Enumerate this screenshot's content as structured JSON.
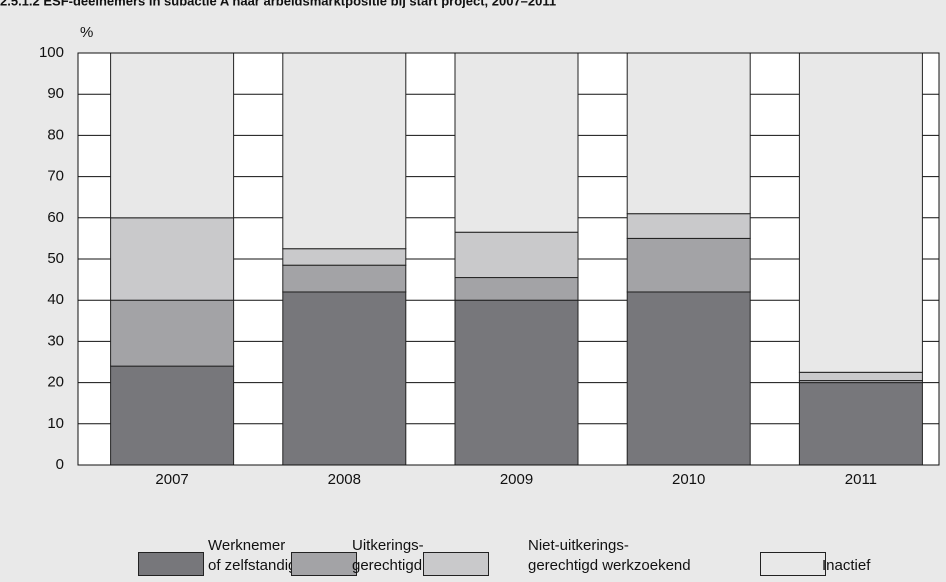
{
  "chart_data": {
    "type": "stacked_bar",
    "title": "2.5.1.2 ESF-deelnemers in subactie A naar arbeidsmarktpositie bij start project, 2007–2011",
    "y_label": "%",
    "categories": [
      "2007",
      "2008",
      "2009",
      "2010",
      "2011"
    ],
    "series": [
      {
        "name": "Werknemer\nof zelfstandige",
        "color": "#77777b",
        "values": [
          24,
          42,
          40,
          42,
          20
        ]
      },
      {
        "name": "Uitkerings-\ngerechtigd",
        "color": "#a3a3a6",
        "values": [
          16,
          6.5,
          5.5,
          13,
          0.5
        ]
      },
      {
        "name": "Niet-uitkerings-\ngerechtigd werkzoekend",
        "color": "#c9c9cb",
        "values": [
          20,
          4,
          11,
          6,
          2
        ]
      },
      {
        "name": "Inactief",
        "color": "#e8e8e8",
        "values": [
          40,
          47.5,
          43.5,
          39,
          77.5
        ]
      }
    ],
    "ylim": [
      0,
      100
    ],
    "yticks": [
      0,
      10,
      20,
      30,
      40,
      50,
      60,
      70,
      80,
      90,
      100
    ],
    "grid": true
  }
}
